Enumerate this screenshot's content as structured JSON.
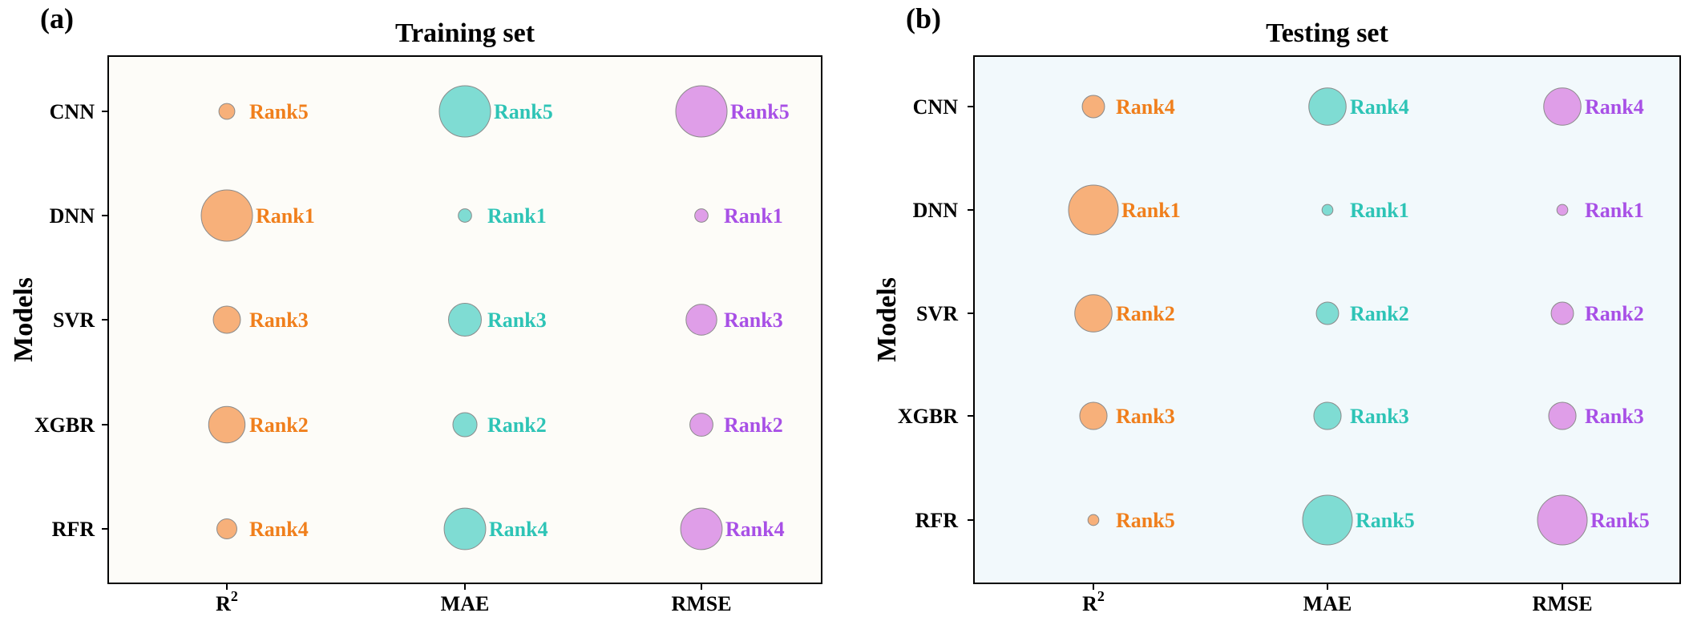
{
  "chart_data": [
    {
      "type": "scatter",
      "panel_label": "(a)",
      "title": "Training set",
      "ylabel": "Models",
      "categories_x": [
        "R",
        "MAE",
        "RMSE"
      ],
      "r2_superscript": "2",
      "categories_y": [
        "CNN",
        "DNN",
        "SVR",
        "XGBR",
        "RFR"
      ],
      "background": "#fdfcf8",
      "series": [
        {
          "name": "R2",
          "color": "#f7b07a",
          "ranks": [
            "Rank5",
            "Rank1",
            "Rank3",
            "Rank2",
            "Rank4"
          ],
          "bubble": [
            0.31,
            1.0,
            0.53,
            0.71,
            0.39
          ]
        },
        {
          "name": "MAE",
          "color": "#7fdcd3",
          "ranks": [
            "Rank5",
            "Rank1",
            "Rank3",
            "Rank2",
            "Rank4"
          ],
          "bubble": [
            1.0,
            0.26,
            0.64,
            0.47,
            0.81
          ]
        },
        {
          "name": "RMSE",
          "color": "#df9ee8",
          "ranks": [
            "Rank5",
            "Rank1",
            "Rank3",
            "Rank2",
            "Rank4"
          ],
          "bubble": [
            1.0,
            0.26,
            0.6,
            0.45,
            0.81
          ]
        }
      ]
    },
    {
      "type": "scatter",
      "panel_label": "(b)",
      "title": "Testing set",
      "ylabel": "Models",
      "categories_x": [
        "R",
        "MAE",
        "RMSE"
      ],
      "r2_superscript": "2",
      "categories_y": [
        "CNN",
        "DNN",
        "SVR",
        "XGBR",
        "RFR"
      ],
      "background": "#f2f9fc",
      "series": [
        {
          "name": "R2",
          "color": "#f7b07a",
          "ranks": [
            "Rank4",
            "Rank1",
            "Rank2",
            "Rank3",
            "Rank5"
          ],
          "bubble": [
            0.45,
            1.0,
            0.75,
            0.55,
            0.22
          ]
        },
        {
          "name": "MAE",
          "color": "#7fdcd3",
          "ranks": [
            "Rank4",
            "Rank1",
            "Rank2",
            "Rank3",
            "Rank5"
          ],
          "bubble": [
            0.75,
            0.22,
            0.45,
            0.55,
            1.0
          ]
        },
        {
          "name": "RMSE",
          "color": "#df9ee8",
          "ranks": [
            "Rank4",
            "Rank1",
            "Rank2",
            "Rank3",
            "Rank5"
          ],
          "bubble": [
            0.75,
            0.22,
            0.45,
            0.55,
            1.0
          ]
        }
      ]
    }
  ],
  "rank_colors": {
    "R2": "#f07f1c",
    "MAE": "#2ec4b6",
    "RMSE": "#a850e6"
  }
}
